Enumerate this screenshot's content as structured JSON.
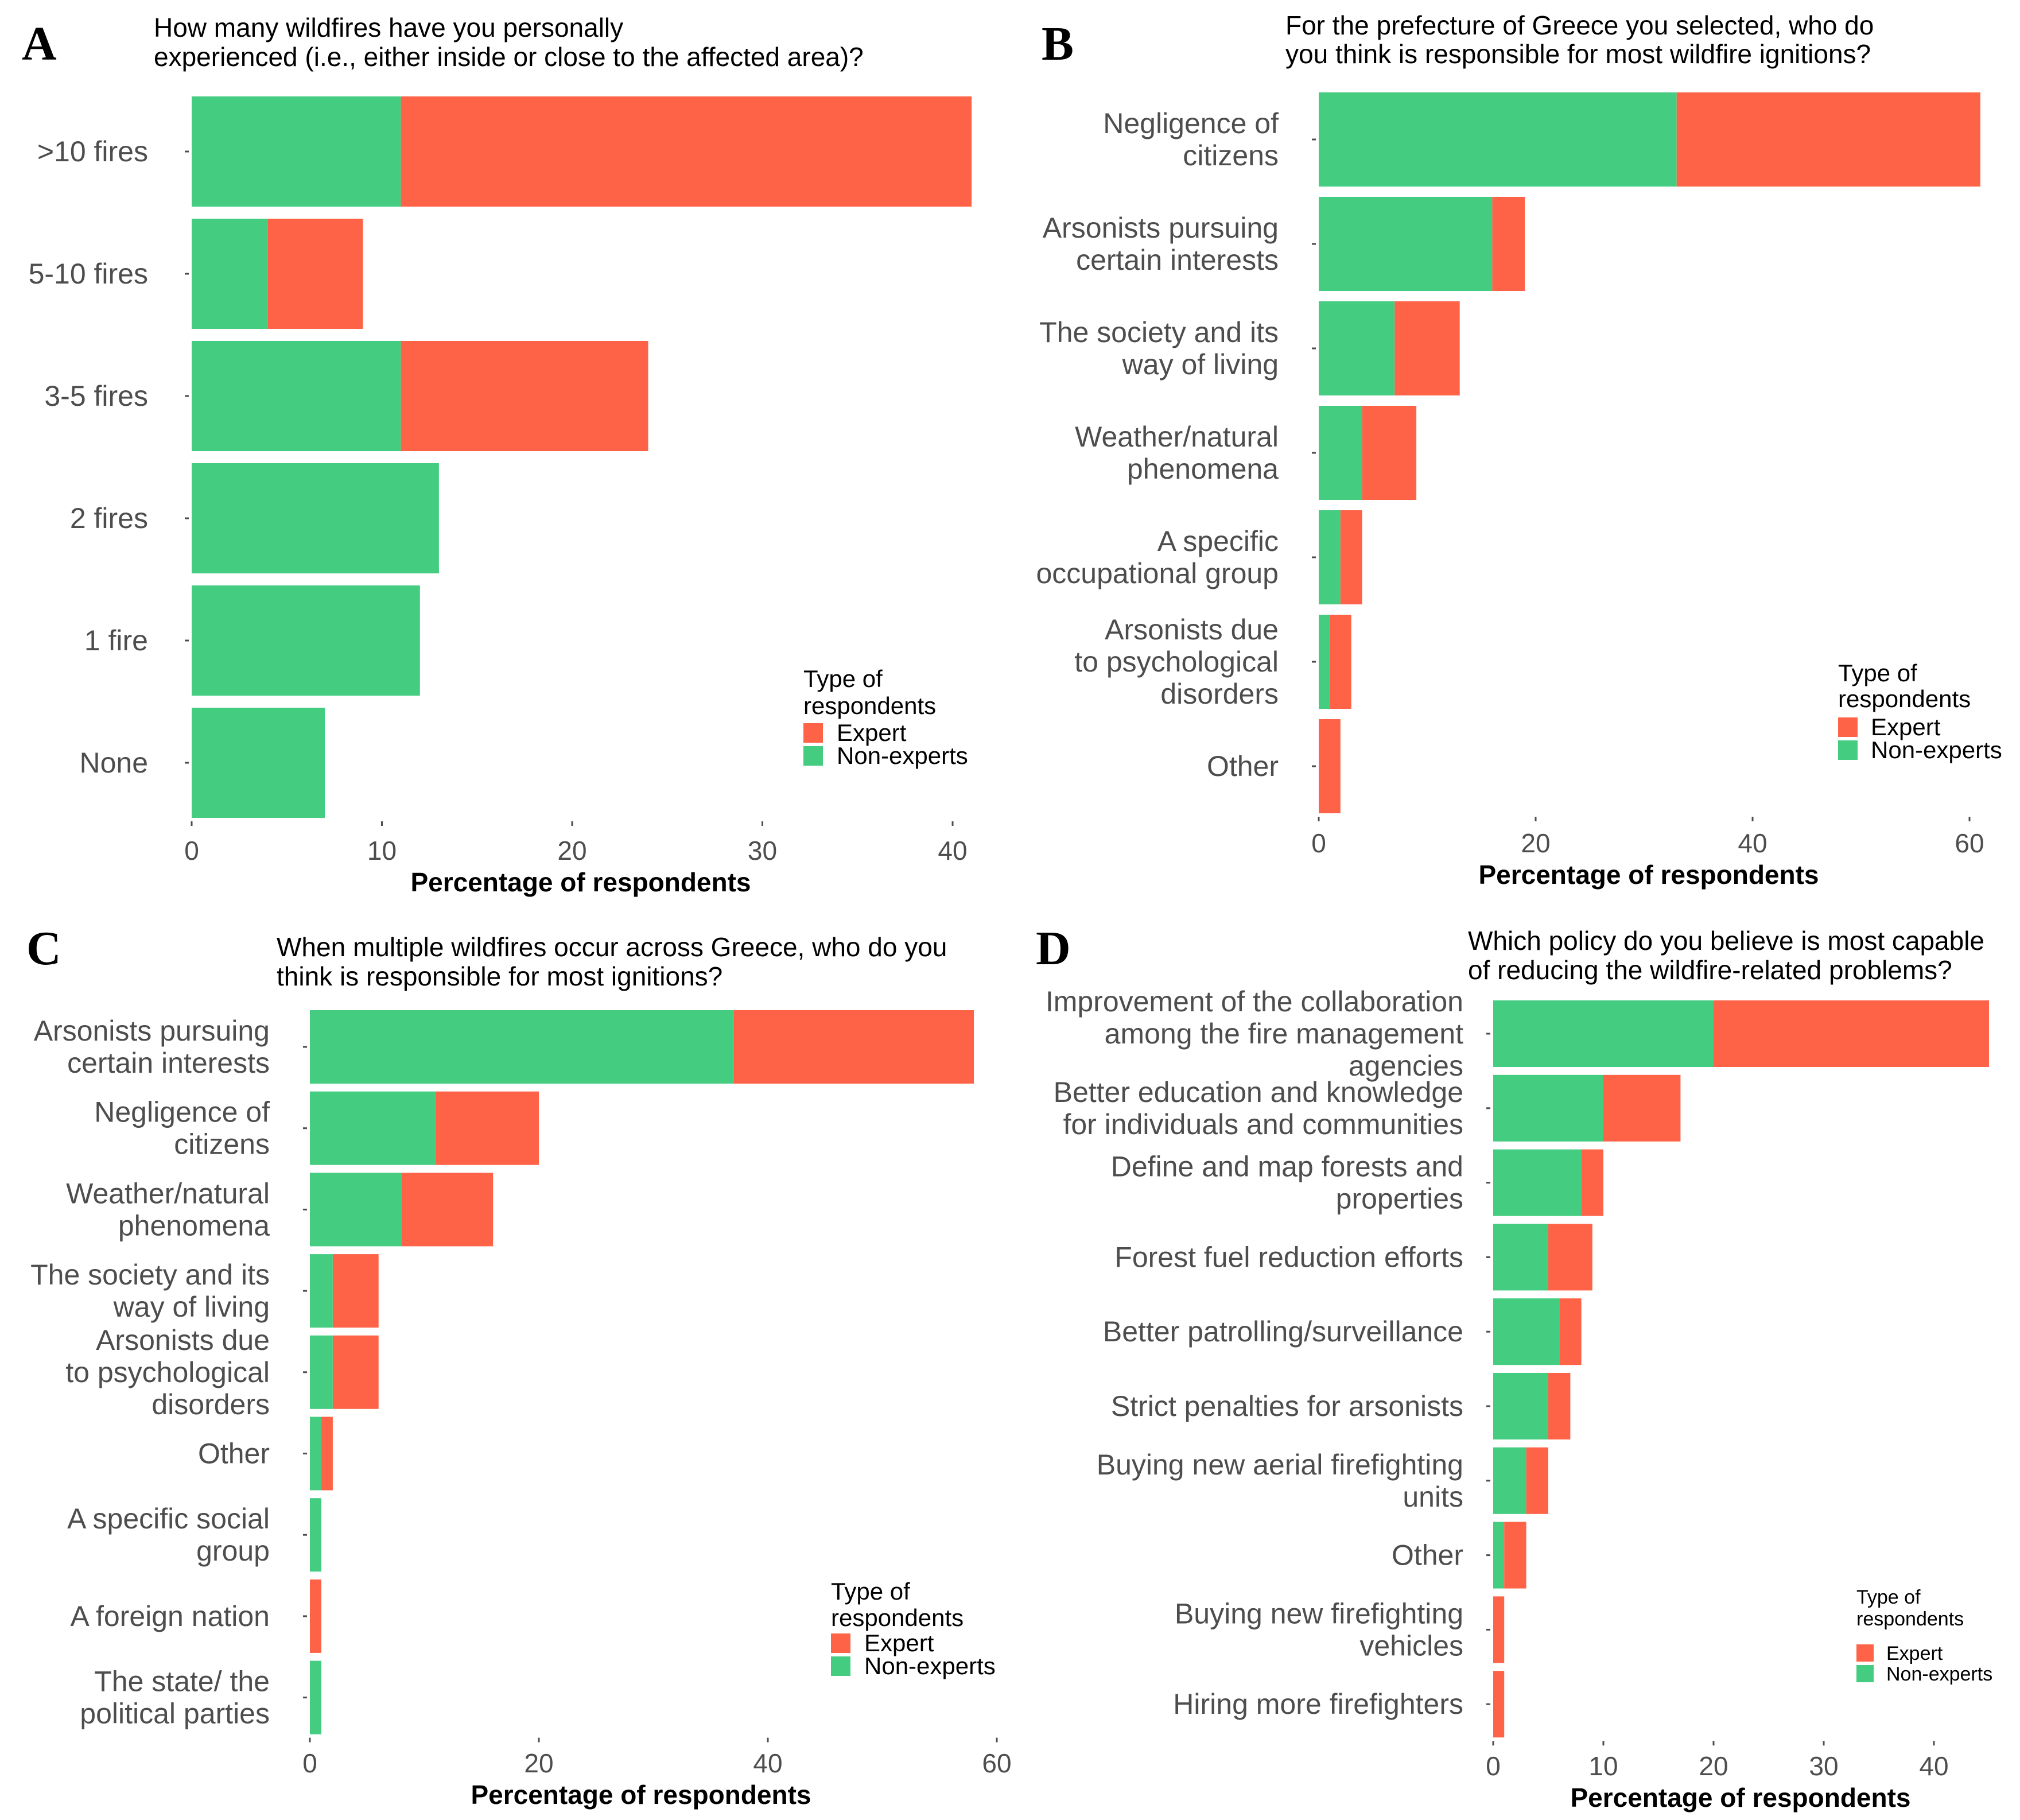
{
  "colors": {
    "expert": "#FF6347",
    "non_experts": "#44CC80"
  },
  "chart_data": [
    {
      "panel": "A",
      "type": "bar",
      "stacked": true,
      "orientation": "horizontal",
      "title": [
        "How many wildfires have you personally",
        "experienced (i.e., either inside or close to the affected area)?"
      ],
      "xlabel": "Percentage of respondents",
      "xlim": [
        0,
        41.5
      ],
      "ticks": [
        0,
        10,
        20,
        30,
        40
      ],
      "categories": [
        [
          ">10 fires"
        ],
        [
          "5-10 fires"
        ],
        [
          "3-5 fires"
        ],
        [
          "2 fires"
        ],
        [
          "1 fire"
        ],
        [
          "None"
        ]
      ],
      "series": [
        {
          "name": "Non-experts",
          "values": [
            11,
            4,
            11,
            13,
            12,
            7
          ]
        },
        {
          "name": "Expert",
          "values": [
            30,
            5,
            13,
            0,
            0,
            0
          ]
        }
      ],
      "legend": {
        "title": [
          "Type of",
          "respondents"
        ],
        "items": [
          "Expert",
          "Non-experts"
        ],
        "position": "bottom-right"
      }
    },
    {
      "panel": "B",
      "type": "bar",
      "stacked": true,
      "orientation": "horizontal",
      "title": [
        "For the prefecture of Greece you selected, who do",
        "you think is responsible for most wildfire ignitions?"
      ],
      "xlabel": "Percentage of respondents",
      "xlim": [
        0,
        61.5
      ],
      "ticks": [
        0,
        20,
        40,
        60
      ],
      "categories": [
        [
          "Negligence of",
          "citizens"
        ],
        [
          "Arsonists pursuing",
          "certain interests"
        ],
        [
          "The society and its",
          "way of living"
        ],
        [
          "Weather/natural",
          "phenomena"
        ],
        [
          "A specific",
          "occupational group"
        ],
        [
          "Arsonists due",
          "to psychological",
          "disorders"
        ],
        [
          "Other"
        ]
      ],
      "series": [
        {
          "name": "Non-experts",
          "values": [
            33,
            16,
            7,
            4,
            2,
            1,
            0
          ]
        },
        {
          "name": "Expert",
          "values": [
            28,
            3,
            6,
            5,
            2,
            2,
            2
          ]
        }
      ],
      "legend": {
        "title": [
          "Type of",
          "respondents"
        ],
        "items": [
          "Expert",
          "Non-experts"
        ],
        "position": "bottom-right"
      }
    },
    {
      "panel": "C",
      "type": "bar",
      "stacked": true,
      "orientation": "horizontal",
      "title": [
        "When multiple wildfires occur across Greece, who do you",
        "think is responsible for most ignitions?"
      ],
      "xlabel": "Percentage of respondents",
      "xlim": [
        0,
        58.5
      ],
      "ticks": [
        0,
        20,
        40,
        60
      ],
      "categories": [
        [
          "Arsonists pursuing",
          "certain interests"
        ],
        [
          "Negligence of",
          "citizens"
        ],
        [
          "Weather/natural",
          "phenomena"
        ],
        [
          "The society and its",
          "way of living"
        ],
        [
          "Arsonists due",
          "to psychological",
          "disorders"
        ],
        [
          "Other"
        ],
        [
          "A specific social",
          "group"
        ],
        [
          "A foreign nation"
        ],
        [
          "The state/ the",
          "political parties"
        ]
      ],
      "series": [
        {
          "name": "Non-experts",
          "values": [
            37,
            11,
            8,
            2,
            2,
            1,
            1,
            0,
            1
          ]
        },
        {
          "name": "Expert",
          "values": [
            21,
            9,
            8,
            4,
            4,
            1,
            0,
            1,
            0
          ]
        }
      ],
      "legend": {
        "title": [
          "Type of",
          "respondents"
        ],
        "items": [
          "Expert",
          "Non-experts"
        ],
        "position": "bottom-right"
      }
    },
    {
      "panel": "D",
      "type": "bar",
      "stacked": true,
      "orientation": "horizontal",
      "title": [
        "Which policy do you believe is most capable",
        "of reducing the wildfire-related problems?"
      ],
      "xlabel": "Percentage of respondents",
      "xlim": [
        0,
        45.3
      ],
      "ticks": [
        0,
        10,
        20,
        30,
        40
      ],
      "categories": [
        [
          "Improvement of the collaboration",
          "among the fire management",
          "agencies"
        ],
        [
          "Better education and knowledge",
          "for individuals and communities"
        ],
        [
          "Define and map forests and",
          "properties"
        ],
        [
          "Forest fuel reduction efforts"
        ],
        [
          "Better patrolling/surveillance"
        ],
        [
          "Strict penalties for arsonists"
        ],
        [
          "Buying new aerial firefighting",
          "units"
        ],
        [
          "Other"
        ],
        [
          "Buying new firefighting",
          "vehicles"
        ],
        [
          "Hiring more firefighters"
        ]
      ],
      "series": [
        {
          "name": "Non-experts",
          "values": [
            20,
            10,
            8,
            5,
            6,
            5,
            3,
            1,
            0,
            0
          ]
        },
        {
          "name": "Expert",
          "values": [
            25,
            7,
            2,
            4,
            2,
            2,
            2,
            2,
            1,
            1
          ]
        }
      ],
      "legend": {
        "title": [
          "Type of",
          "respondents"
        ],
        "items": [
          "Expert",
          "Non-experts"
        ],
        "position": "bottom-right"
      }
    }
  ]
}
